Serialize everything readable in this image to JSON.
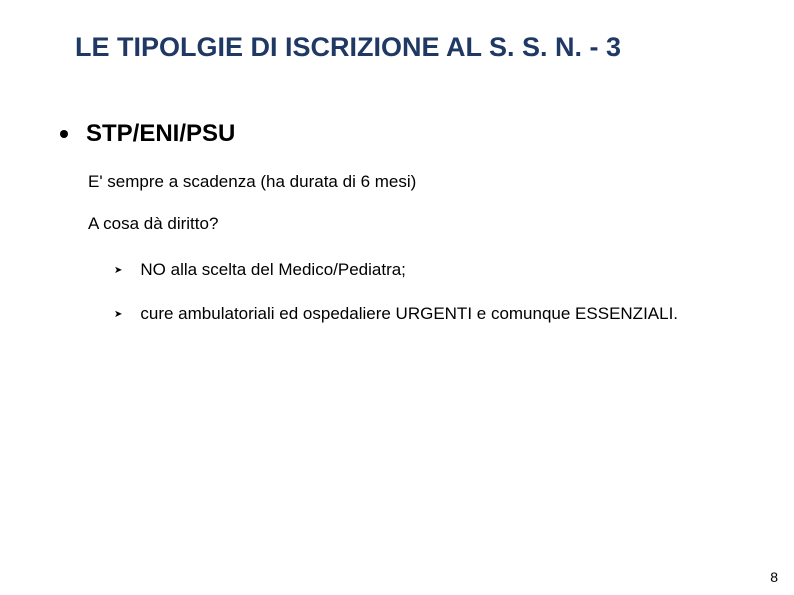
{
  "title": "LE TIPOLGIE DI ISCRIZIONE AL S. S. N. - 3",
  "main_bullet": "STP/ENI/PSU",
  "line1": "E' sempre a scadenza (ha durata di 6 mesi)",
  "line2": "A cosa dà diritto?",
  "sub_items": [
    "NO alla scelta del Medico/Pediatra;",
    "cure ambulatoriali ed ospedaliere URGENTI e comunque ESSENZIALI."
  ],
  "page_number": "8",
  "colors": {
    "title_color": "#1f3864",
    "text_color": "#000000",
    "background": "#ffffff"
  },
  "fonts": {
    "title_size": 27,
    "main_bullet_size": 24,
    "body_size": 17,
    "page_number_size": 14
  }
}
